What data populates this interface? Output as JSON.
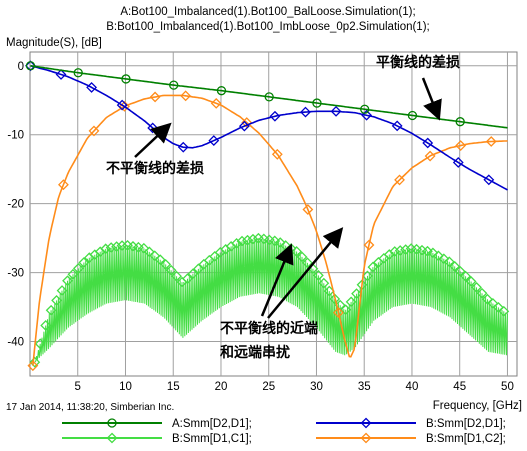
{
  "chart_data": {
    "type": "line",
    "header_lines": [
      "A:Bot100_Imbalanced(1).Bot100_BalLoose.Simulation(1);",
      "B:Bot100_Imbalanced(1).Bot100_ImbLoose_0p2.Simulation(1);"
    ],
    "ylabel": "Magnitude(S), [dB]",
    "xlabel": "Frequency, [GHz]",
    "xlim": [
      0,
      51
    ],
    "ylim": [
      -45,
      2
    ],
    "x_ticks": [
      5,
      10,
      15,
      20,
      25,
      30,
      35,
      40,
      45,
      50
    ],
    "y_ticks": [
      0,
      -10,
      -20,
      -30,
      -40
    ],
    "grid": true,
    "legend_position": "bottom",
    "footer_text": "17 Jan 2014, 11:38:20, Simberian Inc.",
    "series": [
      {
        "name": "A:Smm[D2,D1];",
        "color": "#008000",
        "marker": "circle",
        "x": [
          0.05,
          5,
          10,
          15,
          20,
          25,
          30,
          35,
          40,
          45,
          50
        ],
        "y": [
          0,
          -1.0,
          -1.9,
          -2.8,
          -3.6,
          -4.5,
          -5.4,
          -6.3,
          -7.2,
          -8.1,
          -9.0
        ]
      },
      {
        "name": "B:Smm[D2,D1];",
        "color": "#0000cc",
        "marker": "diamond",
        "x": [
          0.05,
          2,
          4,
          6,
          8,
          10,
          12,
          13,
          14,
          15,
          16,
          17,
          18,
          20,
          22,
          24,
          26,
          28,
          30,
          32,
          34,
          36,
          38,
          40,
          42,
          44,
          46,
          48,
          50
        ],
        "y": [
          0,
          -0.7,
          -1.6,
          -2.8,
          -4.3,
          -6.0,
          -8.0,
          -9.2,
          -10.4,
          -11.3,
          -11.8,
          -11.9,
          -11.6,
          -10.4,
          -9.0,
          -7.9,
          -7.2,
          -6.8,
          -6.6,
          -6.6,
          -6.8,
          -7.4,
          -8.4,
          -9.8,
          -11.5,
          -13.3,
          -15.0,
          -16.5,
          -18.0
        ]
      },
      {
        "name": "B:Smm[D1,C1];",
        "color": "#44dd44",
        "marker": "diamond",
        "envelope": {
          "x": [
            0.5,
            2,
            4,
            6,
            8,
            10,
            12,
            14,
            16,
            18,
            20,
            22,
            24,
            26,
            28,
            30,
            32,
            33,
            34,
            36,
            38,
            40,
            42,
            44,
            46,
            48,
            50
          ],
          "upper": [
            -43,
            -36,
            -31,
            -28,
            -26.5,
            -26,
            -26.5,
            -28.5,
            -31.5,
            -29,
            -27,
            -25.5,
            -25,
            -25.5,
            -27,
            -30,
            -34,
            -35.5,
            -33.5,
            -29,
            -27,
            -26.5,
            -27,
            -28.5,
            -31,
            -34,
            -36
          ],
          "lower": [
            -43,
            -41,
            -38,
            -36,
            -34.5,
            -34,
            -34.5,
            -36.5,
            -39.5,
            -37,
            -35,
            -33.5,
            -33,
            -33.5,
            -35,
            -38,
            -41.5,
            -42,
            -41,
            -37,
            -35,
            -34.5,
            -35,
            -36.5,
            -39,
            -41.5,
            -42
          ]
        }
      },
      {
        "name": "B:Smm[D1,C2];",
        "color": "#ff8c1a",
        "marker": "diamond",
        "x": [
          0.3,
          1,
          2,
          3,
          4,
          6,
          8,
          10,
          12,
          14,
          16,
          18,
          20,
          22,
          24,
          26,
          28,
          29,
          30,
          31,
          32,
          33,
          33.5,
          34,
          34.5,
          35,
          36,
          38,
          40,
          42,
          44,
          46,
          48,
          50
        ],
        "y": [
          -43.5,
          -34,
          -25,
          -19,
          -15.5,
          -10.5,
          -7.5,
          -5.8,
          -4.8,
          -4.3,
          -4.3,
          -4.7,
          -5.7,
          -7.4,
          -9.8,
          -13,
          -17.5,
          -20.5,
          -24,
          -28.5,
          -34,
          -40,
          -42.5,
          -41,
          -35,
          -29,
          -23,
          -17.5,
          -14.8,
          -13,
          -11.9,
          -11.3,
          -11,
          -10.9
        ]
      }
    ],
    "annotations": [
      "平衡线的差损",
      "不平衡线的差损",
      "不平衡线的近端",
      "和远端串扰"
    ]
  }
}
